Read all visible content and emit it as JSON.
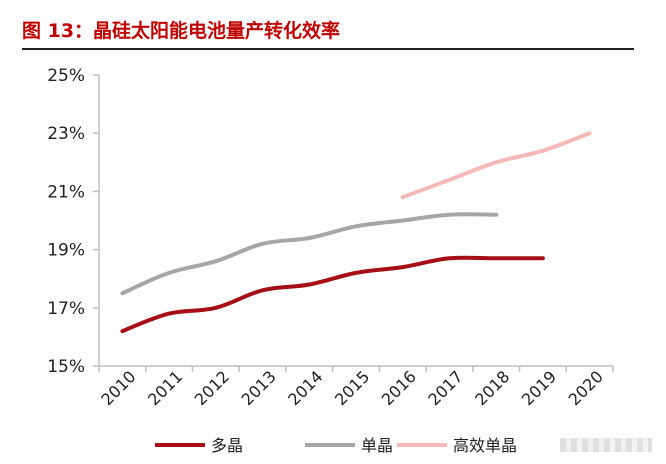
{
  "figure": {
    "title": "图 13：晶硅太阳能电池量产转化效率"
  },
  "chart_data": {
    "type": "line",
    "x": [
      "2010",
      "2011",
      "2012",
      "2013",
      "2014",
      "2015",
      "2016",
      "2017",
      "2018",
      "2019",
      "2020"
    ],
    "ylim": [
      15,
      25
    ],
    "yticks": [
      "15%",
      "17%",
      "19%",
      "21%",
      "23%",
      "25%"
    ],
    "ytick_values": [
      15,
      17,
      19,
      21,
      23,
      25
    ],
    "grid": false,
    "legend_position": "bottom",
    "series": [
      {
        "name": "多晶",
        "color": "#a50f15",
        "values": [
          16.2,
          16.8,
          17.0,
          17.6,
          17.8,
          18.2,
          18.4,
          18.7,
          18.7,
          18.7,
          null
        ]
      },
      {
        "name": "单晶",
        "color": "#a6a6a6",
        "values": [
          17.5,
          18.2,
          18.6,
          19.2,
          19.4,
          19.8,
          20.0,
          20.2,
          20.2,
          null,
          null
        ]
      },
      {
        "name": "高效单晶",
        "color": "#f6b8b8",
        "values": [
          null,
          null,
          null,
          null,
          null,
          null,
          20.8,
          21.4,
          22.0,
          22.4,
          23.0
        ]
      }
    ]
  }
}
